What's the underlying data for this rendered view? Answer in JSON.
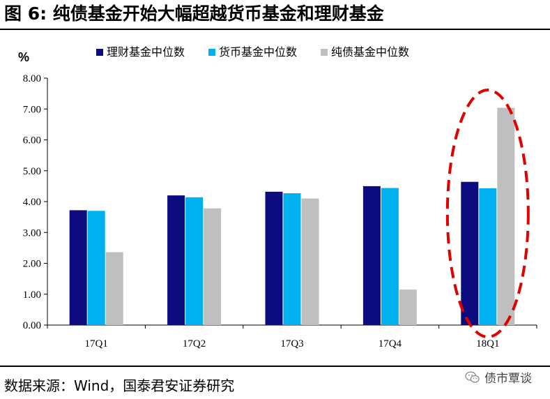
{
  "header": {
    "title": "图 6:  纯债基金开始大幅超越货币基金和理财基金"
  },
  "footer": {
    "source": "数据来源：Wind，国泰君安证券研究",
    "watermark": "债市覃谈"
  },
  "icons": {
    "watermark_icon": "wechat-icon"
  },
  "chart_data": {
    "type": "bar",
    "unit_label": "%",
    "categories": [
      "17Q1",
      "17Q2",
      "17Q3",
      "17Q4",
      "18Q1"
    ],
    "series": [
      {
        "name": "理财基金中位数",
        "color": "#0c0c80",
        "values": [
          3.72,
          4.2,
          4.32,
          4.5,
          4.64
        ]
      },
      {
        "name": "货币基金中位数",
        "color": "#00b0f0",
        "values": [
          3.7,
          4.14,
          4.27,
          4.44,
          4.43
        ]
      },
      {
        "name": "纯债基金中位数",
        "color": "#bfbfbf",
        "values": [
          2.36,
          3.78,
          4.1,
          1.15,
          7.04
        ]
      }
    ],
    "ylim": [
      0,
      8
    ],
    "yticks": [
      "0.00",
      "1.00",
      "2.00",
      "3.00",
      "4.00",
      "5.00",
      "6.00",
      "7.00",
      "8.00"
    ],
    "grid": false,
    "legend_position": "top",
    "highlight": {
      "category": "18Q1",
      "style": "red dashed ellipse",
      "color": "#e00000"
    }
  }
}
